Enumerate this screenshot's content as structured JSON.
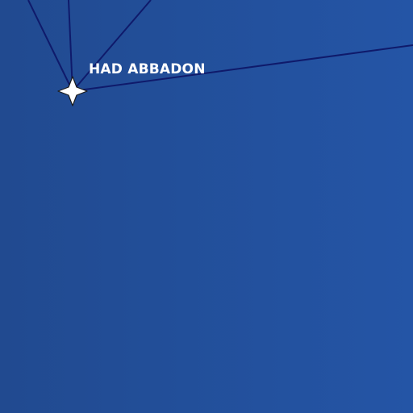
{
  "map": {
    "background_colors": [
      "#214a90",
      "#2455a6"
    ],
    "route_color": "#0f1a6b",
    "marker": {
      "label": "HAD ABBADON",
      "icon": "four-point-star-icon",
      "fill": "#ffffff"
    }
  }
}
